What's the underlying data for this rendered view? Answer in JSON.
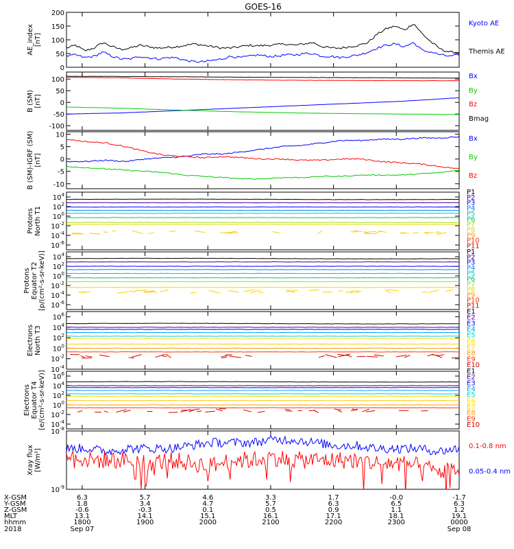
{
  "chart_data": {
    "type": "line",
    "title": "GOES-16",
    "x_ticks": [
      "1800",
      "1900",
      "2000",
      "2100",
      "2200",
      "2300",
      "0000"
    ],
    "x_range_hours": [
      17.75,
      24.0
    ],
    "ephemeris": {
      "labels": [
        "X-GSM",
        "Y-GSM",
        "Z-GSM",
        "MLT",
        "hhmm",
        "2018"
      ],
      "rows": [
        [
          "6.3",
          "5.7",
          "4.6",
          "3.3",
          "1.7",
          "-0.0",
          "-1.7"
        ],
        [
          "1.8",
          "3.4",
          "4.7",
          "5.7",
          "6.3",
          "6.5",
          "6.3"
        ],
        [
          "-0.6",
          "-0.3",
          "0.1",
          "0.5",
          "0.9",
          "1.1",
          "1.2"
        ],
        [
          "13.1",
          "14.1",
          "15.1",
          "16.1",
          "17.1",
          "18.1",
          "19.1"
        ],
        [
          "1800",
          "1900",
          "2000",
          "2100",
          "2200",
          "2300",
          "0000"
        ]
      ],
      "dates": [
        "Sep 07",
        "Sep 08"
      ]
    },
    "panels": [
      {
        "id": "ae",
        "ylabel": [
          "AE_index",
          "[nT]"
        ],
        "yscale": "linear",
        "ylim": [
          0,
          200
        ],
        "yticks": [
          "0",
          "50",
          "100",
          "150",
          "200"
        ],
        "legend": [
          {
            "label": "Kyoto AE",
            "color": "#0000ff"
          },
          {
            "label": "Themis AE",
            "color": "#000000"
          }
        ],
        "series": [
          {
            "name": "Themis AE",
            "color": "#000000",
            "noise": 4,
            "values": [
              70,
              80,
              60,
              70,
              90,
              75,
              65,
              70,
              80,
              75,
              70,
              72,
              75,
              80,
              85,
              80,
              75,
              70,
              70,
              75,
              80,
              78,
              80,
              82,
              85,
              80,
              85,
              90,
              75,
              70,
              70,
              75,
              80,
              90,
              120,
              140,
              150,
              135,
              160,
              120,
              90,
              65,
              55,
              55
            ]
          },
          {
            "name": "Kyoto AE",
            "color": "#0000ff",
            "noise": 4,
            "values": [
              40,
              45,
              35,
              40,
              55,
              40,
              30,
              30,
              40,
              35,
              30,
              35,
              35,
              25,
              20,
              20,
              25,
              30,
              40,
              35,
              40,
              45,
              40,
              40,
              45,
              45,
              50,
              50,
              40,
              40,
              35,
              40,
              45,
              55,
              70,
              80,
              85,
              75,
              90,
              60,
              55,
              45,
              40,
              45
            ]
          }
        ]
      },
      {
        "id": "bsm",
        "ylabel": [
          "B (SM)",
          "[nT]"
        ],
        "yscale": "linear",
        "ylim": [
          -120,
          130
        ],
        "yticks": [
          "-100",
          "-50",
          "0",
          "50",
          "100"
        ],
        "legend": [
          {
            "label": "Bx",
            "color": "#0000ff"
          },
          {
            "label": "By",
            "color": "#00cc00"
          },
          {
            "label": "Bz",
            "color": "#ff0000"
          },
          {
            "label": "Bmag",
            "color": "#000000"
          }
        ],
        "series": [
          {
            "name": "Bmag",
            "color": "#000000",
            "noise": 0.5,
            "values": [
              112,
              111,
              110,
              108,
              107,
              106,
              105,
              104
            ]
          },
          {
            "name": "Bz",
            "color": "#ff0000",
            "noise": 0.5,
            "values": [
              108,
              105,
              100,
              97,
              95,
              94,
              93,
              93
            ]
          },
          {
            "name": "Bx",
            "color": "#0000ff",
            "noise": 0.3,
            "values": [
              -50,
              -45,
              -35,
              -25,
              -15,
              -5,
              5,
              20
            ]
          },
          {
            "name": "By",
            "color": "#00cc00",
            "noise": 0.3,
            "values": [
              -20,
              -25,
              -33,
              -40,
              -45,
              -48,
              -50,
              -52
            ]
          }
        ]
      },
      {
        "id": "bsm-igrf",
        "ylabel": [
          "B (SM)-IGRF (SM)",
          "[nT]"
        ],
        "yscale": "linear",
        "ylim": [
          -12,
          11
        ],
        "yticks": [
          "-10",
          "-5",
          "0",
          "5",
          "10"
        ],
        "legend": [
          {
            "label": "Bx",
            "color": "#0000ff"
          },
          {
            "label": "By",
            "color": "#00cc00"
          },
          {
            "label": "Bz",
            "color": "#ff0000"
          }
        ],
        "series": [
          {
            "name": "Bx",
            "color": "#0000ff",
            "noise": 0.25,
            "values": [
              -1,
              -1,
              -0.5,
              -1,
              0,
              0.5,
              1,
              2,
              2,
              3,
              4,
              5,
              5.5,
              6.5,
              7.5,
              7.5,
              8,
              8,
              8.5,
              8.5,
              9
            ]
          },
          {
            "name": "Bz",
            "color": "#ff0000",
            "noise": 0.25,
            "values": [
              8,
              7,
              6.5,
              5,
              3,
              1.5,
              1,
              0.5,
              1,
              0.5,
              0,
              0,
              -0.5,
              -0.5,
              0,
              0,
              -1,
              -1.5,
              -2,
              -3,
              -4
            ]
          },
          {
            "name": "By",
            "color": "#00cc00",
            "noise": 0.2,
            "values": [
              -3,
              -3.5,
              -4,
              -4.5,
              -5,
              -5.5,
              -6.5,
              -7,
              -7.5,
              -8,
              -8,
              -7.5,
              -7.5,
              -7,
              -7,
              -6.5,
              -6.5,
              -6.5,
              -6,
              -5.5,
              -4.5
            ]
          }
        ]
      },
      {
        "id": "protons-t1",
        "ylabel": [
          "Protons",
          "North T1"
        ],
        "yscale": "log",
        "ylim": [
          -7,
          5
        ],
        "yticks": [
          "10^-6",
          "10^-4",
          "10^-2",
          "10^0",
          "10^2",
          "10^4"
        ],
        "legend": [
          {
            "label": "P1",
            "color": "#000000"
          },
          {
            "label": "P2",
            "color": "#4b0082"
          },
          {
            "label": "P3",
            "color": "#0000ff"
          },
          {
            "label": "P4",
            "color": "#0080ff"
          },
          {
            "label": "P5",
            "color": "#00c0c0"
          },
          {
            "label": "P6",
            "color": "#00c080"
          },
          {
            "label": "P7",
            "color": "#aadd00"
          },
          {
            "label": "P8",
            "color": "#dddd00"
          },
          {
            "label": "P9",
            "color": "#ff9900"
          },
          {
            "label": "P10",
            "color": "#ff3300"
          },
          {
            "label": "P11",
            "color": "#cc0000"
          }
        ],
        "levels": [
          3.5,
          2.8,
          1.9,
          1.2,
          0.6,
          -0.3,
          -1.3,
          -1.7
        ],
        "sparse": {
          "color": "#ffcc00",
          "level": -3.4
        }
      },
      {
        "id": "protons-t2",
        "ylabel": [
          "Protons",
          "Equator T2",
          "[p/(cm²-s-sr-keV)]"
        ],
        "yscale": "log",
        "ylim": [
          -7,
          5
        ],
        "yticks": [
          "10^-6",
          "10^-4",
          "10^-2",
          "10^0",
          "10^2",
          "10^4"
        ],
        "legend": [
          {
            "label": "P1",
            "color": "#000000"
          },
          {
            "label": "P2",
            "color": "#4b0082"
          },
          {
            "label": "P3",
            "color": "#0000ff"
          },
          {
            "label": "P4",
            "color": "#0080ff"
          },
          {
            "label": "P5",
            "color": "#00c0c0"
          },
          {
            "label": "P6",
            "color": "#00c080"
          },
          {
            "label": "P7",
            "color": "#aadd00"
          },
          {
            "label": "P8",
            "color": "#dddd00"
          },
          {
            "label": "P9",
            "color": "#ff9900"
          },
          {
            "label": "P10",
            "color": "#ff3300"
          },
          {
            "label": "P11",
            "color": "#cc0000"
          }
        ],
        "levels": [
          3.6,
          2.9,
          2.0,
          1.3,
          0.5,
          -0.4,
          -1.2,
          -2.4
        ],
        "sparse": {
          "color": "#ffcc00",
          "level": -3.2
        }
      },
      {
        "id": "electrons-t3",
        "ylabel": [
          "Electrons",
          "North T3"
        ],
        "yscale": "log",
        "ylim": [
          -4,
          7
        ],
        "yticks": [
          "10^-4",
          "10^-2",
          "10^0",
          "10^2",
          "10^4",
          "10^6"
        ],
        "legend": [
          {
            "label": "E1",
            "color": "#000000"
          },
          {
            "label": "E2",
            "color": "#4b0082"
          },
          {
            "label": "E3",
            "color": "#0000ff"
          },
          {
            "label": "E4",
            "color": "#00a0ff"
          },
          {
            "label": "E5",
            "color": "#00d0d0"
          },
          {
            "label": "E6",
            "color": "#ffdd00"
          },
          {
            "label": "E7",
            "color": "#ffcc00"
          },
          {
            "label": "E8",
            "color": "#ff9900"
          },
          {
            "label": "E9",
            "color": "#ff3300"
          },
          {
            "label": "E10",
            "color": "#cc0000"
          }
        ],
        "levels": [
          4.7,
          4.0,
          3.6,
          3.0,
          2.3,
          1.8,
          0.8,
          0.0,
          -0.7
        ],
        "sparse": {
          "color": "#cc0000",
          "level": -1.5
        }
      },
      {
        "id": "electrons-t4",
        "ylabel": [
          "Electrons",
          "Equator T4",
          "[e/(cm²-s-sr-keV)]"
        ],
        "yscale": "log",
        "ylim": [
          -5,
          7
        ],
        "yticks": [
          "10^-4",
          "10^-2",
          "10^0",
          "10^2",
          "10^4",
          "10^6"
        ],
        "legend": [
          {
            "label": "E1",
            "color": "#000000"
          },
          {
            "label": "E2",
            "color": "#4b0082"
          },
          {
            "label": "E3",
            "color": "#0000ff"
          },
          {
            "label": "E4",
            "color": "#00a0ff"
          },
          {
            "label": "E5",
            "color": "#00d0d0"
          },
          {
            "label": "E6",
            "color": "#ffdd00"
          },
          {
            "label": "E7",
            "color": "#ffcc00"
          },
          {
            "label": "E8",
            "color": "#ff9900"
          },
          {
            "label": "E9",
            "color": "#ff3300"
          },
          {
            "label": "E10",
            "color": "#cc0000"
          }
        ],
        "levels": [
          4.8,
          4.0,
          3.6,
          3.0,
          2.3,
          1.8,
          0.9,
          0.0,
          -0.6
        ],
        "sparse": {
          "color": "#cc0000",
          "level": -1.2
        }
      },
      {
        "id": "xray",
        "ylabel": [
          "Xray flux",
          "[W/m²]"
        ],
        "yscale": "log",
        "ylim": [
          -9,
          -8
        ],
        "yticks": [
          "10^-9",
          "10^-8"
        ],
        "legend": [
          {
            "label": "0.1-0.8 nm",
            "color": "#ff0000"
          },
          {
            "label": "0.05-0.4 nm",
            "color": "#0000ff"
          }
        ],
        "series": [
          {
            "name": "0.05-0.4 nm",
            "color": "#0000ff",
            "noise": 0.08,
            "values": [
              -8.3,
              -8.3,
              -8.35,
              -8.3,
              -8.3,
              -8.3,
              -8.25,
              -8.2,
              -8.2,
              -8.2,
              -8.15,
              -8.15,
              -8.2,
              -8.25,
              -8.25,
              -8.3,
              -8.3,
              -8.3,
              -8.35,
              -8.3
            ]
          },
          {
            "name": "0.1-0.8 nm",
            "color": "#ff0000",
            "noise": 0.15,
            "values": [
              -8.4,
              -8.5,
              -8.5,
              -8.5,
              -8.55,
              -8.5,
              -8.55,
              -8.6,
              -8.5,
              -8.5,
              -8.45,
              -8.5,
              -8.5,
              -8.5,
              -8.5,
              -8.55,
              -8.55,
              -8.6,
              -8.7,
              -8.65
            ]
          }
        ]
      }
    ]
  }
}
